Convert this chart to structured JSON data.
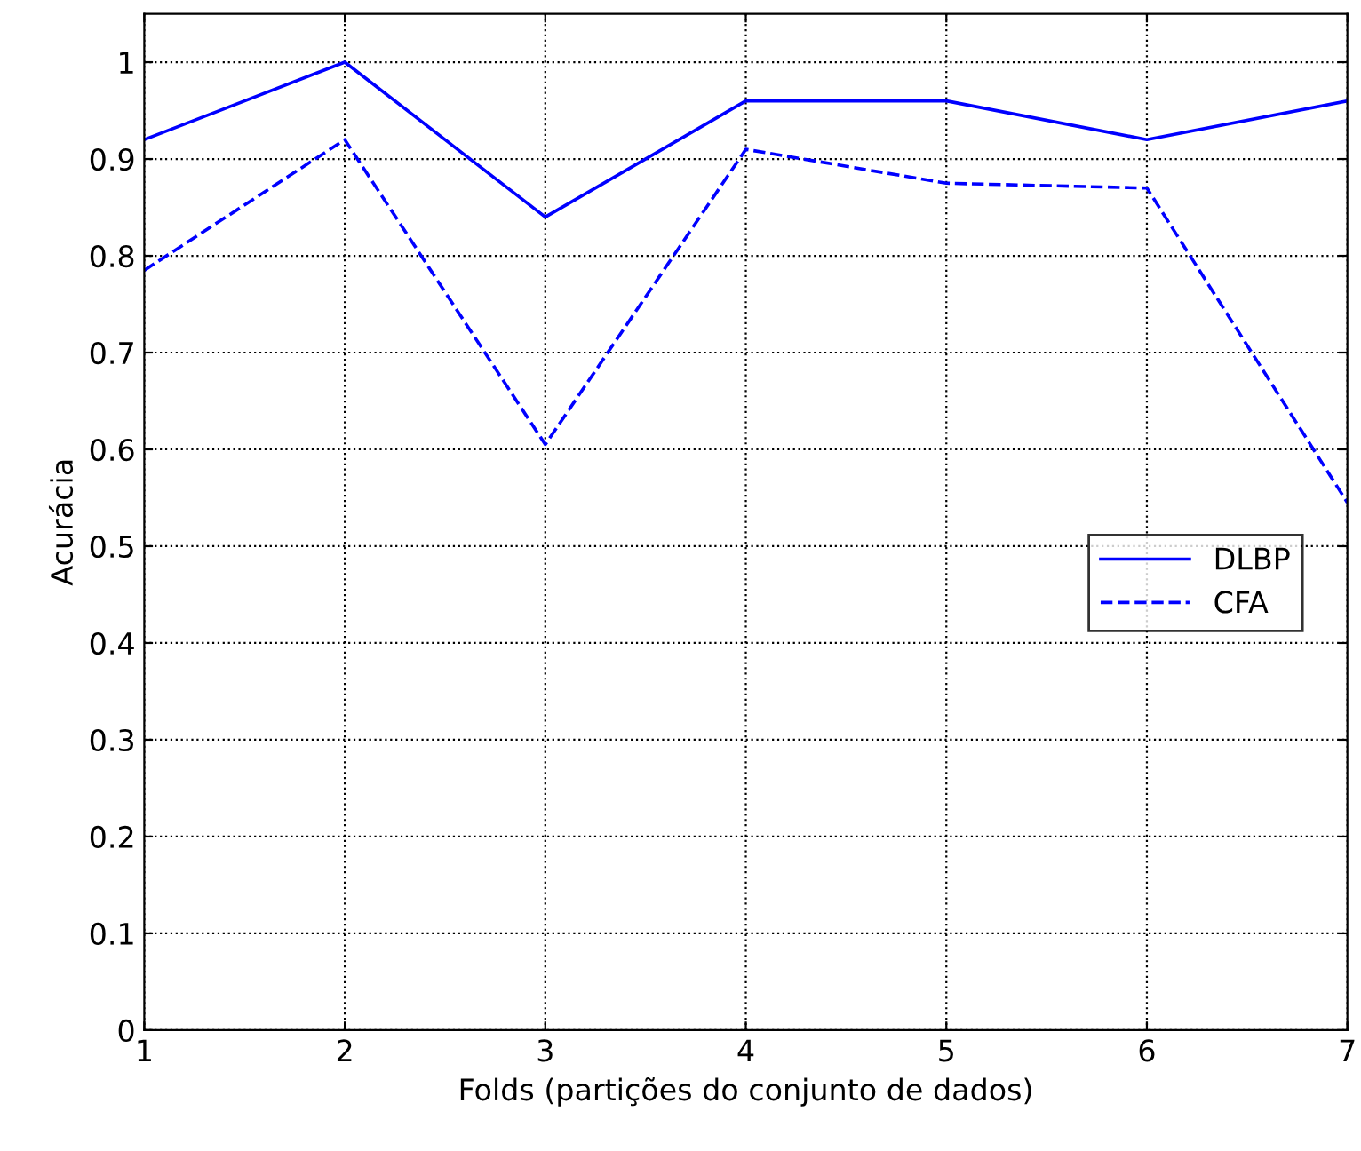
{
  "chart_data": {
    "type": "line",
    "xlabel": "Folds (partições do conjunto de dados)",
    "ylabel": "Acurácia",
    "x": [
      1,
      2,
      3,
      4,
      5,
      6,
      7
    ],
    "series": [
      {
        "name": "DLBP",
        "color": "#0000ff",
        "line_style": "solid",
        "values": [
          0.92,
          1.0,
          0.84,
          0.96,
          0.96,
          0.92,
          0.96
        ]
      },
      {
        "name": "CFA",
        "color": "#0000ff",
        "line_style": "dashed",
        "values": [
          0.785,
          0.92,
          0.605,
          0.91,
          0.875,
          0.87,
          0.545
        ]
      }
    ],
    "xlim": [
      1,
      7
    ],
    "xticks": [
      1,
      2,
      3,
      4,
      5,
      6,
      7
    ],
    "ylim": [
      0,
      1.05
    ],
    "yticks": [
      0,
      0.1,
      0.2,
      0.3,
      0.4,
      0.5,
      0.6,
      0.7,
      0.8,
      0.9,
      1
    ],
    "grid": true,
    "legend": "right"
  }
}
